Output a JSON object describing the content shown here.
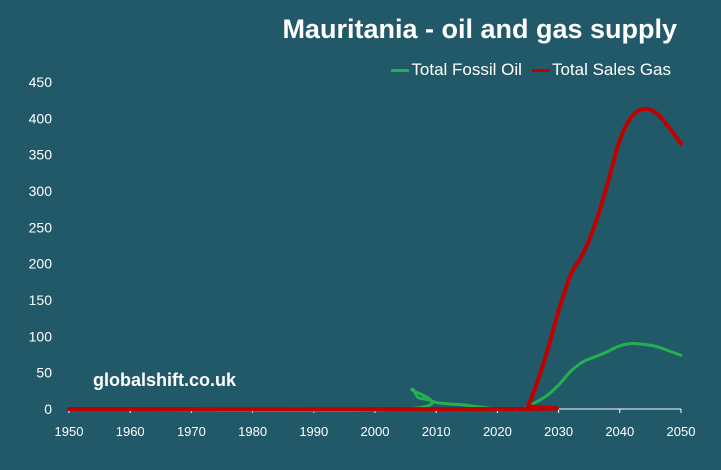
{
  "chart_data": {
    "type": "line",
    "title": "Mauritania - oil and gas supply",
    "xlabel": "",
    "ylabel": "",
    "xlim": [
      1950,
      2050
    ],
    "ylim": [
      0,
      450
    ],
    "x_ticks": [
      "1950",
      "1960",
      "1970",
      "1980",
      "1990",
      "2000",
      "2010",
      "2020",
      "2030",
      "2040",
      "2050"
    ],
    "y_ticks": [
      "0",
      "50",
      "100",
      "150",
      "200",
      "250",
      "300",
      "350",
      "400",
      "450"
    ],
    "grid": false,
    "legend_position": "top-right",
    "watermark": "globalshift.co.uk",
    "series": [
      {
        "name": "Total Fossil Oil",
        "color": "#22b14c",
        "points": [
          [
            1950,
            0
          ],
          [
            2005,
            0
          ],
          [
            2006,
            27
          ],
          [
            2007,
            16
          ],
          [
            2008,
            14
          ],
          [
            2009,
            12
          ],
          [
            2010,
            9
          ],
          [
            2012,
            7
          ],
          [
            2014,
            6
          ],
          [
            2016,
            4
          ],
          [
            2018,
            2
          ],
          [
            2020,
            0
          ],
          [
            2024,
            0
          ],
          [
            2026,
            8
          ],
          [
            2028,
            18
          ],
          [
            2030,
            33
          ],
          [
            2032,
            52
          ],
          [
            2034,
            65
          ],
          [
            2036,
            72
          ],
          [
            2038,
            79
          ],
          [
            2040,
            87
          ],
          [
            2042,
            90
          ],
          [
            2044,
            89
          ],
          [
            2046,
            86
          ],
          [
            2048,
            80
          ],
          [
            2050,
            74
          ]
        ]
      },
      {
        "name": "Total Sales Gas",
        "color": "#c00000",
        "points": [
          [
            1950,
            0
          ],
          [
            2024,
            0
          ],
          [
            2025,
            5
          ],
          [
            2026,
            25
          ],
          [
            2028,
            75
          ],
          [
            2030,
            135
          ],
          [
            2032,
            185
          ],
          [
            2034,
            214
          ],
          [
            2036,
            255
          ],
          [
            2038,
            310
          ],
          [
            2040,
            370
          ],
          [
            2042,
            403
          ],
          [
            2044,
            413
          ],
          [
            2046,
            407
          ],
          [
            2048,
            388
          ],
          [
            2050,
            365
          ]
        ]
      }
    ]
  }
}
